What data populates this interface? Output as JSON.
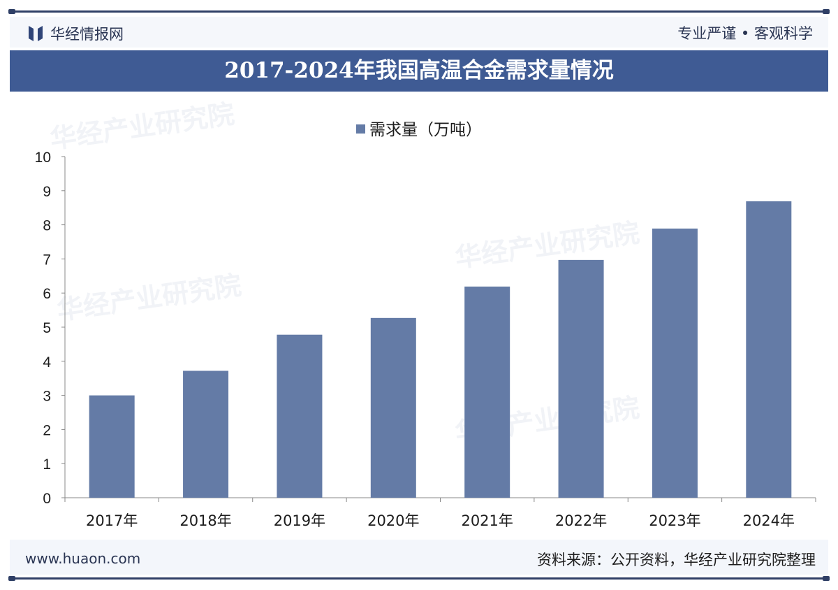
{
  "header": {
    "logo_text": "华经情报网",
    "slogan": "专业严谨 • 客观科学"
  },
  "title": "2017-2024年我国高温合金需求量情况",
  "footer": {
    "url": "www.huaon.com",
    "source": "资料来源：公开资料，华经产业研究院整理"
  },
  "watermark": "华经产业研究院",
  "colors": {
    "bar": "#647ba6",
    "banner": "#3f5b94"
  },
  "chart_data": {
    "type": "bar",
    "title": "2017-2024年我国高温合金需求量情况",
    "legend": [
      "需求量（万吨）"
    ],
    "legend_position": "top-center",
    "categories": [
      "2017年",
      "2018年",
      "2019年",
      "2020年",
      "2021年",
      "2022年",
      "2023年",
      "2024年"
    ],
    "series": [
      {
        "name": "需求量（万吨）",
        "values": [
          3.0,
          3.72,
          4.78,
          5.27,
          6.19,
          6.97,
          7.89,
          8.69
        ]
      }
    ],
    "ylim": [
      0,
      10
    ],
    "yticks": [
      0,
      1,
      2,
      3,
      4,
      5,
      6,
      7,
      8,
      9,
      10
    ],
    "xlabel": "",
    "ylabel": "",
    "grid": false
  }
}
